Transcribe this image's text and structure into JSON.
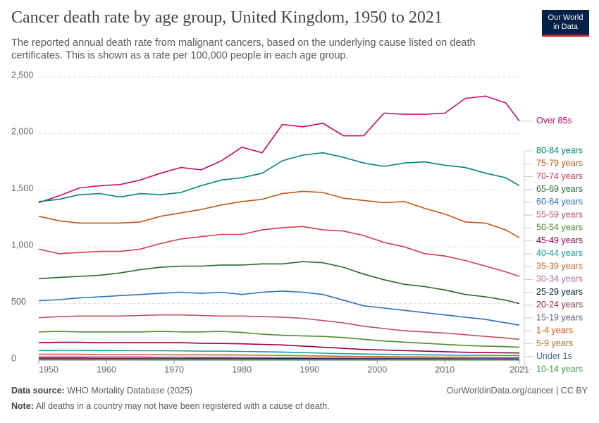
{
  "title": "Cancer death rate by age group, United Kingdom, 1950 to 2021",
  "subtitle": "The reported annual death rate from malignant cancers, based on the underlying cause listed on death certificates. This is shown as a rate per 100,000 people in each age group.",
  "logo": [
    "Our World",
    "in Data"
  ],
  "footer": {
    "source_label": "Data source:",
    "source": "WHO Mortality Database (2025)",
    "link": "OurWorldinData.org/cancer | CC BY",
    "note_label": "Note:",
    "note": "All deaths in a country may not have been registered with a cause of death."
  },
  "chart_data": {
    "type": "line",
    "x": [
      1950,
      1953,
      1956,
      1959,
      1962,
      1965,
      1968,
      1971,
      1974,
      1977,
      1980,
      1983,
      1986,
      1989,
      1992,
      1995,
      1998,
      2001,
      2004,
      2007,
      2010,
      2013,
      2016,
      2019,
      2021
    ],
    "xlim": [
      1950,
      2021
    ],
    "xticks": [
      1950,
      1960,
      1970,
      1980,
      1990,
      2000,
      2010,
      2021
    ],
    "ylim": [
      0,
      2500
    ],
    "yticks": [
      0,
      {
        "value": 500,
        "label": "500"
      },
      {
        "value": 1000,
        "label": "1,000"
      },
      {
        "value": 1500,
        "label": "1,500"
      },
      {
        "value": 2000,
        "label": "2,000"
      },
      {
        "value": 2500,
        "label": "2,500"
      }
    ],
    "grid": true,
    "series": [
      {
        "name": "Over 85s",
        "color": "#cf0a66",
        "values": [
          1390,
          1450,
          1520,
          1540,
          1550,
          1590,
          1650,
          1700,
          1680,
          1760,
          1880,
          1830,
          2080,
          2060,
          2090,
          1980,
          1980,
          2180,
          2170,
          2170,
          2180,
          2310,
          2330,
          2270,
          2110
        ]
      },
      {
        "name": "80-84 years",
        "color": "#00847e",
        "values": [
          1400,
          1420,
          1460,
          1470,
          1440,
          1470,
          1460,
          1480,
          1540,
          1590,
          1610,
          1650,
          1760,
          1810,
          1830,
          1790,
          1740,
          1710,
          1740,
          1750,
          1720,
          1700,
          1650,
          1610,
          1540
        ]
      },
      {
        "name": "75-79 years",
        "color": "#c05917",
        "values": [
          1270,
          1230,
          1210,
          1210,
          1210,
          1220,
          1270,
          1300,
          1330,
          1370,
          1400,
          1420,
          1470,
          1490,
          1480,
          1430,
          1410,
          1390,
          1400,
          1340,
          1290,
          1220,
          1210,
          1150,
          1080
        ]
      },
      {
        "name": "70-74 years",
        "color": "#d73c50",
        "values": [
          980,
          940,
          950,
          960,
          960,
          980,
          1030,
          1070,
          1090,
          1110,
          1110,
          1150,
          1170,
          1180,
          1150,
          1140,
          1100,
          1040,
          1000,
          940,
          920,
          880,
          830,
          780,
          740
        ]
      },
      {
        "name": "65-69 years",
        "color": "#286b29",
        "values": [
          720,
          730,
          740,
          750,
          770,
          800,
          820,
          830,
          830,
          840,
          840,
          850,
          850,
          870,
          860,
          820,
          760,
          710,
          670,
          650,
          620,
          580,
          560,
          530,
          500
        ]
      },
      {
        "name": "60-64 years",
        "color": "#2c6fbf",
        "values": [
          525,
          535,
          550,
          560,
          570,
          580,
          590,
          600,
          590,
          600,
          580,
          600,
          610,
          600,
          580,
          530,
          480,
          460,
          440,
          420,
          400,
          380,
          360,
          330,
          310
        ]
      },
      {
        "name": "55-59 years",
        "color": "#c15065",
        "values": [
          375,
          385,
          390,
          390,
          390,
          395,
          400,
          400,
          395,
          390,
          390,
          385,
          380,
          370,
          350,
          330,
          300,
          280,
          260,
          250,
          240,
          225,
          210,
          195,
          185
        ]
      },
      {
        "name": "50-54 years",
        "color": "#4c8b2b",
        "values": [
          250,
          255,
          250,
          250,
          250,
          250,
          255,
          250,
          250,
          255,
          245,
          230,
          220,
          215,
          210,
          200,
          185,
          170,
          160,
          150,
          140,
          130,
          125,
          120,
          115
        ]
      },
      {
        "name": "45-49 years",
        "color": "#970046",
        "values": [
          155,
          158,
          158,
          155,
          155,
          155,
          155,
          155,
          150,
          148,
          145,
          140,
          135,
          125,
          115,
          105,
          95,
          90,
          85,
          80,
          75,
          70,
          68,
          66,
          64
        ]
      },
      {
        "name": "40-44 years",
        "color": "#18a0a0",
        "values": [
          85,
          87,
          87,
          86,
          85,
          84,
          84,
          83,
          80,
          80,
          78,
          75,
          72,
          68,
          62,
          58,
          55,
          52,
          50,
          48,
          46,
          44,
          43,
          42,
          41
        ]
      },
      {
        "name": "35-39 years",
        "color": "#c4682b",
        "values": [
          52,
          52,
          52,
          50,
          50,
          50,
          50,
          48,
          48,
          47,
          46,
          44,
          42,
          40,
          38,
          35,
          33,
          32,
          30,
          29,
          28,
          27,
          26,
          26,
          25
        ]
      },
      {
        "name": "30-34 years",
        "color": "#b16fa9",
        "values": [
          30,
          30,
          30,
          29,
          29,
          29,
          28,
          28,
          27,
          27,
          26,
          25,
          24,
          23,
          22,
          21,
          20,
          19,
          18,
          18,
          17,
          17,
          16,
          16,
          16
        ]
      },
      {
        "name": "25-29 years",
        "color": "#002147",
        "values": [
          18,
          18,
          18,
          17,
          17,
          17,
          17,
          16,
          16,
          16,
          15,
          15,
          14,
          14,
          13,
          13,
          12,
          12,
          11,
          11,
          11,
          10,
          10,
          10,
          10
        ]
      },
      {
        "name": "20-24 years",
        "color": "#883039",
        "values": [
          12,
          12,
          12,
          12,
          12,
          12,
          12,
          11,
          11,
          11,
          11,
          10,
          10,
          10,
          9,
          9,
          9,
          8,
          8,
          8,
          8,
          8,
          7,
          7,
          7
        ]
      },
      {
        "name": "15-19 years",
        "color": "#6b57a5",
        "values": [
          9,
          9,
          9,
          9,
          9,
          9,
          9,
          9,
          8,
          8,
          8,
          8,
          7,
          7,
          7,
          6,
          6,
          6,
          6,
          6,
          5,
          5,
          5,
          5,
          5
        ]
      },
      {
        "name": "1-4 years",
        "color": "#e6560b",
        "values": [
          8,
          8,
          8,
          8,
          8,
          8,
          7,
          7,
          7,
          7,
          6,
          6,
          5,
          5,
          5,
          4,
          4,
          4,
          4,
          3,
          3,
          3,
          3,
          3,
          3
        ]
      },
      {
        "name": "5-9 years",
        "color": "#b06e2a",
        "values": [
          7,
          7,
          7,
          7,
          7,
          6,
          6,
          6,
          5,
          5,
          5,
          5,
          4,
          4,
          4,
          4,
          3,
          3,
          3,
          3,
          3,
          3,
          3,
          3,
          3
        ]
      },
      {
        "name": "Under 1s",
        "color": "#4c6a9c",
        "values": [
          5,
          5,
          5,
          5,
          5,
          5,
          4,
          4,
          4,
          4,
          4,
          3,
          3,
          3,
          3,
          3,
          3,
          2,
          2,
          2,
          2,
          2,
          2,
          2,
          2
        ]
      },
      {
        "name": "10-14 years",
        "color": "#3e9a4c",
        "values": [
          5,
          5,
          5,
          5,
          5,
          4,
          4,
          4,
          4,
          4,
          4,
          3,
          3,
          3,
          3,
          3,
          3,
          2,
          2,
          2,
          2,
          2,
          2,
          2,
          2
        ]
      }
    ]
  }
}
